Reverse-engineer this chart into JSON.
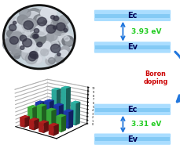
{
  "bar_data": {
    "groups": 4,
    "red": [
      2.5,
      2.5,
      2.5,
      2.5
    ],
    "green": [
      4.5,
      5.5,
      5.0,
      4.0
    ],
    "blue": [
      5.0,
      6.0,
      5.5,
      4.5
    ],
    "cyan": [
      0.0,
      8.5,
      9.5,
      6.0
    ]
  },
  "bar_colors": {
    "red": "#cc2222",
    "green": "#44cc44",
    "blue": "#2244cc",
    "cyan": "#33ccbb"
  },
  "band_gap_top": {
    "Ec_label": "Ec",
    "Ev_label": "Ev",
    "gap_label": "3.93 eV",
    "gap_color": "#22cc22"
  },
  "band_gap_bottom": {
    "Ec_label": "Ec",
    "Ev_label": "Ev",
    "gap_label": "3.31 eV",
    "gap_color": "#22cc22"
  },
  "boron_label": "Boron\ndoping",
  "boron_color": "#cc0000",
  "band_bar_facecolor": "#aaddff",
  "band_bar_stripe": "#66bbee",
  "band_text_color": "#000055",
  "arrow_color": "#2277dd",
  "bg_color": "#ffffff",
  "circle_bg": "#bbccdd",
  "circle_border": "#111111"
}
